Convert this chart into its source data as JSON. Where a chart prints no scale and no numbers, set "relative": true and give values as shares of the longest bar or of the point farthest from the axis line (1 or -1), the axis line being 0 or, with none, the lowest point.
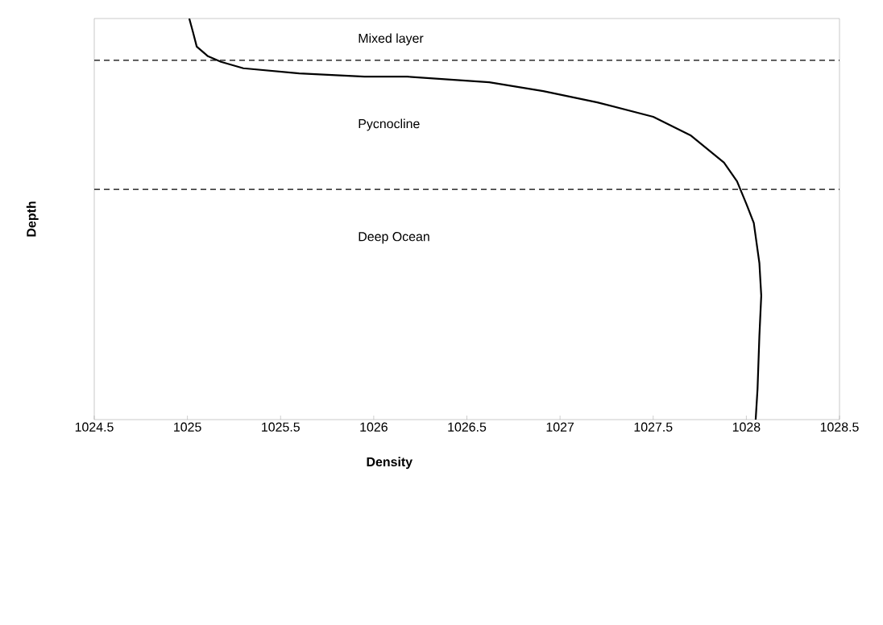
{
  "chart_data": {
    "type": "line",
    "xlabel": "Density",
    "ylabel": "Depth",
    "relative": true,
    "xlim": [
      1024.5,
      1028.5
    ],
    "xticks": [
      1024.5,
      1025,
      1025.5,
      1026,
      1026.5,
      1027,
      1027.5,
      1028,
      1028.5
    ],
    "x": [
      1025.01,
      1025.03,
      1025.05,
      1025.11,
      1025.18,
      1025.3,
      1025.6,
      1025.95,
      1026.18,
      1026.62,
      1026.91,
      1027.2,
      1027.5,
      1027.7,
      1027.88,
      1027.95,
      1028.0,
      1028.04,
      1028.07,
      1028.08,
      1028.07,
      1028.06,
      1028.05
    ],
    "series": [
      {
        "color": "#000000",
        "values": [
          1.0,
          0.966,
          0.93,
          0.906,
          0.892,
          0.876,
          0.863,
          0.855,
          0.855,
          0.841,
          0.819,
          0.791,
          0.755,
          0.709,
          0.641,
          0.594,
          0.538,
          0.49,
          0.39,
          0.309,
          0.209,
          0.076,
          0.0
        ]
      }
    ],
    "ref_lines": [
      {
        "axis": "y",
        "value": 0.896,
        "color": "#000000",
        "line_style": "dashed"
      },
      {
        "axis": "y",
        "value": 0.574,
        "color": "#000000",
        "line_style": "dashed"
      }
    ],
    "annotations": [
      "Mixed layer",
      "Pycnocline",
      "Deep Ocean"
    ],
    "grid": false
  }
}
